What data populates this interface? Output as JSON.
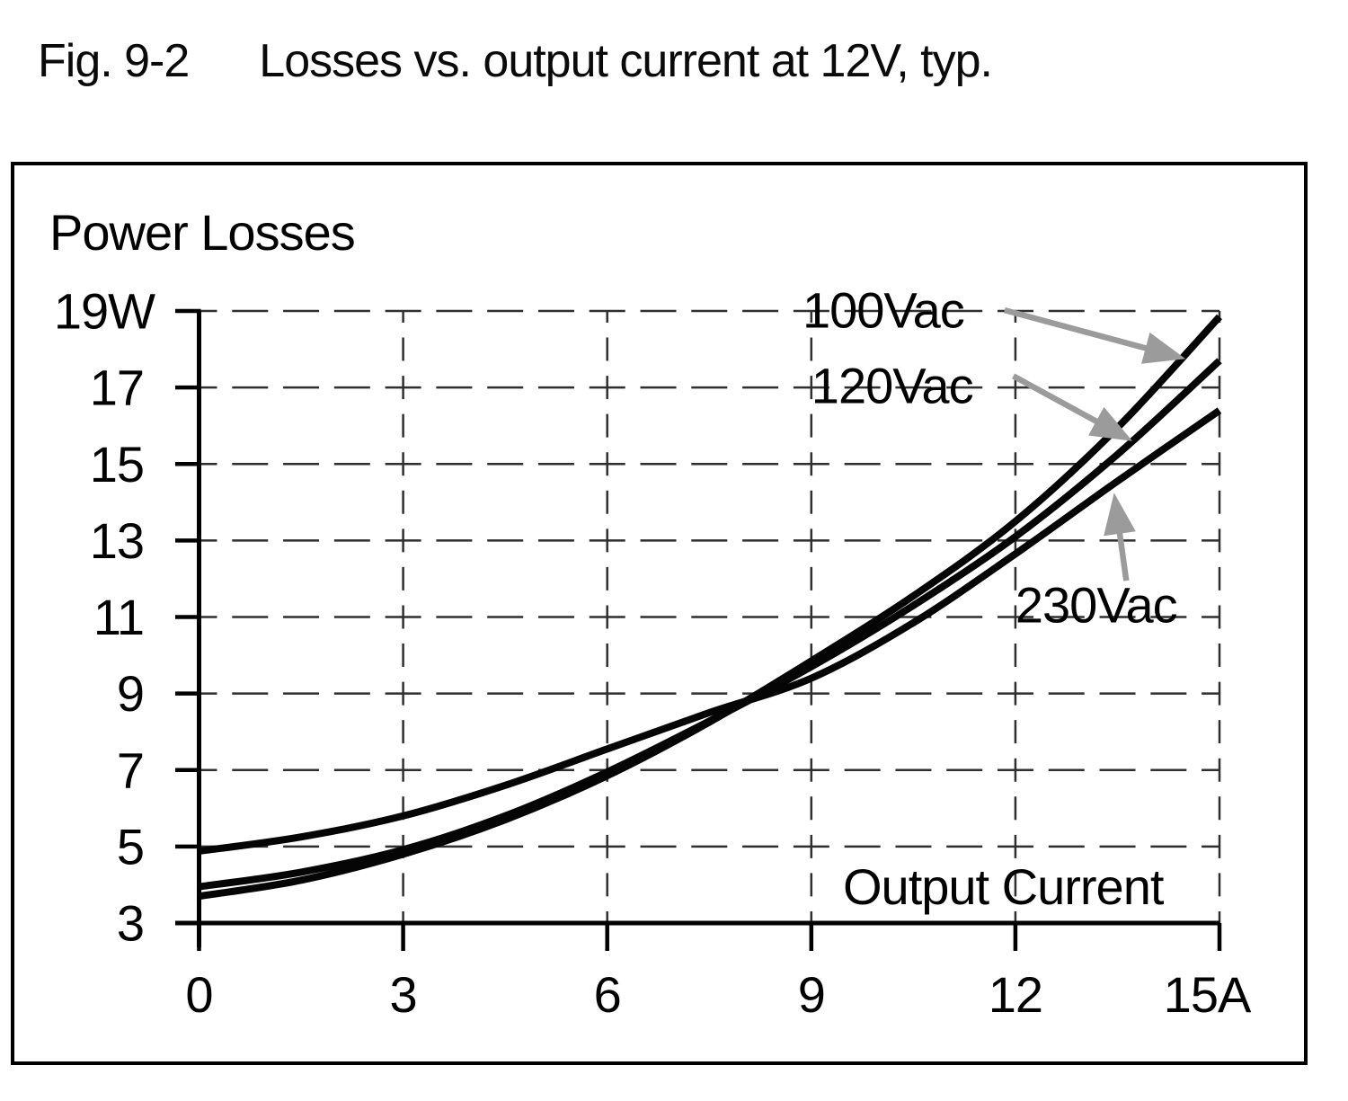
{
  "figure": {
    "number": "Fig. 9-2",
    "caption": "Losses vs. output current at 12V, typ."
  },
  "chart_data": {
    "type": "line",
    "title": "Losses vs. output current at 12V, typ.",
    "x_axis": {
      "label": "Output Current",
      "unit": "A",
      "min": 0,
      "max": 15,
      "ticks": [
        0,
        3,
        6,
        9,
        12,
        15
      ],
      "tick_labels": [
        "0",
        "3",
        "6",
        "9",
        "12",
        "15A"
      ]
    },
    "y_axis": {
      "label": "Power Losses",
      "unit": "W",
      "min": 3,
      "max": 19,
      "ticks": [
        19,
        17,
        15,
        13,
        11,
        9,
        7,
        5,
        3
      ],
      "tick_labels": [
        "19W",
        "17",
        "15",
        "13",
        "11",
        "9",
        "7",
        "5",
        "3"
      ]
    },
    "grid": {
      "style": "dashed",
      "horizontal_at": [
        19,
        17,
        15,
        13,
        11,
        9,
        7,
        5
      ],
      "vertical_at": [
        3,
        6,
        9,
        12,
        15
      ]
    },
    "series": [
      {
        "name": "100Vac",
        "x": [
          0,
          1.5,
          3,
          4.5,
          6,
          7.5,
          9,
          10.5,
          12,
          13.5,
          15
        ],
        "y": [
          3.7,
          4.12,
          4.8,
          5.7,
          6.85,
          8.25,
          9.85,
          11.55,
          13.5,
          15.95,
          18.85
        ]
      },
      {
        "name": "120Vac",
        "x": [
          0,
          1.5,
          3,
          4.5,
          6,
          7.5,
          9,
          10.5,
          12,
          13.5,
          15
        ],
        "y": [
          3.95,
          4.33,
          4.92,
          5.8,
          6.95,
          8.28,
          9.7,
          11.3,
          13.1,
          15.25,
          17.7
        ]
      },
      {
        "name": "230Vac",
        "x": [
          0,
          1.5,
          3,
          4.5,
          6,
          7.5,
          9,
          10.5,
          12,
          13.5,
          15
        ],
        "y": [
          4.88,
          5.25,
          5.8,
          6.6,
          7.55,
          8.5,
          9.4,
          10.85,
          12.65,
          14.55,
          16.4
        ]
      }
    ],
    "annotations": [
      {
        "text": "100Vac",
        "label_at": {
          "a": 8.87,
          "w": 19.02
        },
        "arrow": {
          "from": {
            "a": 11.84,
            "w": 19.02
          },
          "to": {
            "a": 14.5,
            "w": 17.75
          }
        }
      },
      {
        "text": "120Vac",
        "label_at": {
          "a": 9.0,
          "w": 17.05
        },
        "arrow": {
          "from": {
            "a": 11.97,
            "w": 17.3
          },
          "to": {
            "a": 13.72,
            "w": 15.6
          }
        }
      },
      {
        "text": "230Vac",
        "label_at": {
          "a": 12.0,
          "w": 11.32
        },
        "arrow": {
          "from": {
            "a": 13.63,
            "w": 11.95
          },
          "to": {
            "a": 13.45,
            "w": 14.25
          }
        }
      }
    ],
    "colors": {
      "curve": "#000000",
      "arrow": "#9b9b9b",
      "grid": "#2f2f2f",
      "background": "#ffffff"
    },
    "legend_position": "inline-annotations"
  }
}
